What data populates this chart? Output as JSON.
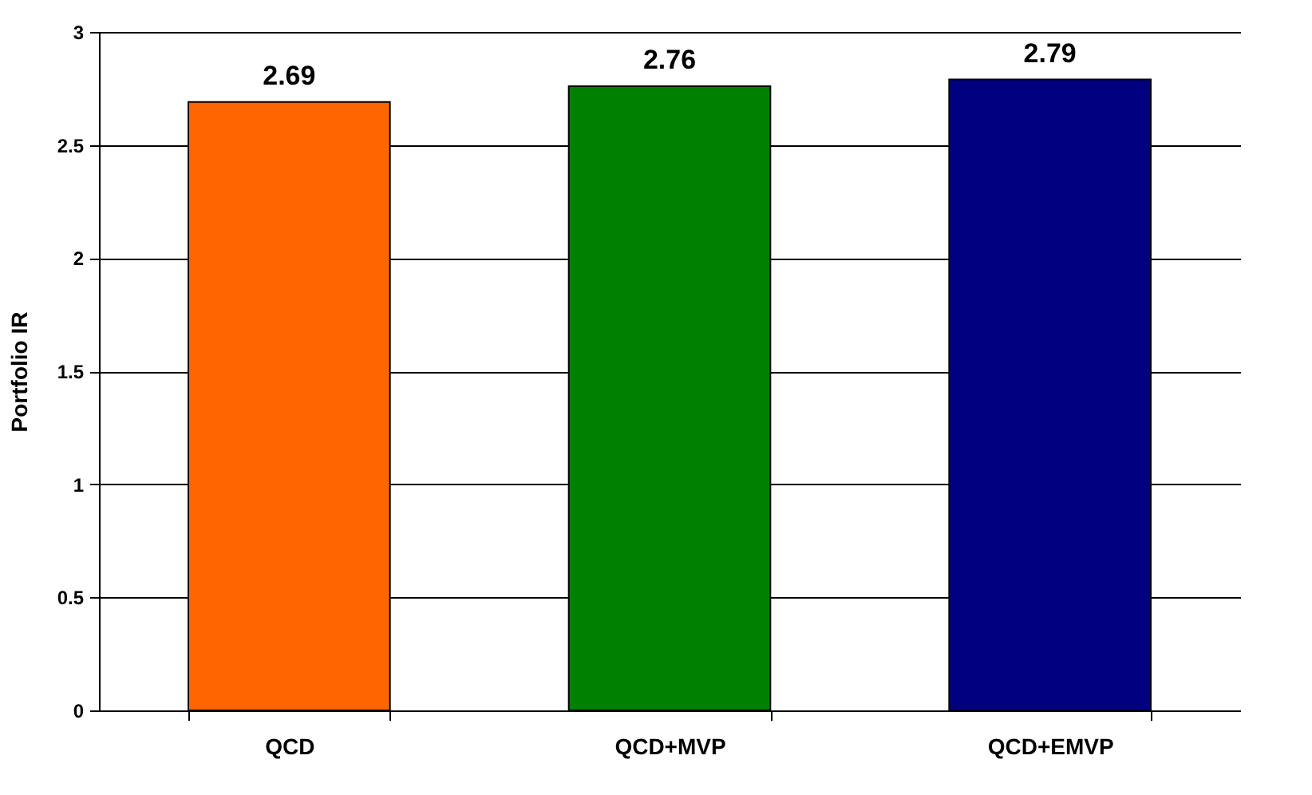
{
  "chart_data": {
    "type": "bar",
    "ylabel": "Portfolio IR",
    "categories": [
      "QCD",
      "QCD+MVP",
      "QCD+EMVP"
    ],
    "values": [
      2.69,
      2.76,
      2.79
    ],
    "colors": [
      "#ff6600",
      "#008000",
      "#000080"
    ],
    "ylim": [
      0,
      3
    ],
    "yticks": [
      0,
      0.5,
      1,
      1.5,
      2,
      2.5,
      3
    ],
    "grid": "y",
    "data_labels": true
  }
}
